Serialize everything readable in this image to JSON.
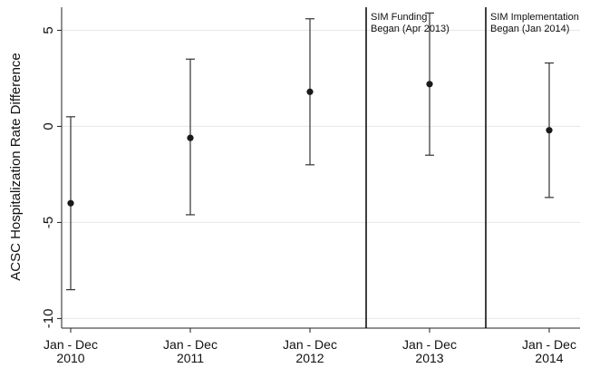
{
  "chart_data": {
    "type": "scatter",
    "subtype": "point-estimate-with-error-bars",
    "ylabel": "ACSC Hospitalization Rate Difference",
    "xlabel": "",
    "ylim": [
      -10.5,
      6.2
    ],
    "yticks": [
      {
        "value": 5,
        "label": "5"
      },
      {
        "value": 0,
        "label": "0"
      },
      {
        "value": -5,
        "label": "-5"
      },
      {
        "value": -10,
        "label": "-10"
      }
    ],
    "grid": true,
    "legend": "none",
    "categories": [
      {
        "line1": "Jan - Dec",
        "line2": "2010"
      },
      {
        "line1": "Jan - Dec",
        "line2": "2011"
      },
      {
        "line1": "Jan - Dec",
        "line2": "2012"
      },
      {
        "line1": "Jan - Dec",
        "line2": "2013"
      },
      {
        "line1": "Jan - Dec",
        "line2": "2014"
      }
    ],
    "points": [
      {
        "estimate": -4.0,
        "lower": -8.5,
        "upper": 0.5
      },
      {
        "estimate": -0.6,
        "lower": -4.6,
        "upper": 3.5
      },
      {
        "estimate": 1.8,
        "lower": -2.0,
        "upper": 5.6
      },
      {
        "estimate": 2.2,
        "lower": -1.5,
        "upper": 5.9
      },
      {
        "estimate": -0.2,
        "lower": -3.7,
        "upper": 3.3
      }
    ],
    "reference_lines": [
      {
        "at_category": 2.5,
        "line1": "SIM Funding",
        "line2": "Began (Apr 2013)"
      },
      {
        "at_category": 3.5,
        "line1": "SIM Implementation",
        "line2": "Began (Jan 2014)"
      }
    ],
    "colors": {
      "point": "#1a1a1a",
      "errorbar": "#333333",
      "axis": "#222222",
      "grid": "#e6e6e6",
      "reference_line": "#000000"
    }
  }
}
